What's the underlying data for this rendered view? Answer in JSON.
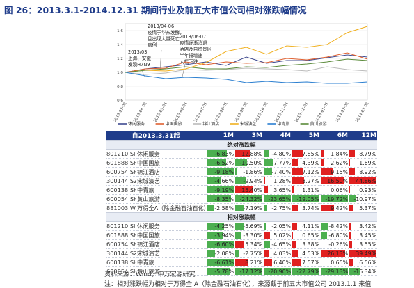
{
  "figure": {
    "title": "图 26：2013.3.1-2014.12.31 期间行业及前五大市值公司相对涨跌幅情况",
    "source": "资料来源：Wind，申万宏源研究",
    "note": "注：相对涨跌幅为相对于万得全 A（除金融石油石化），来源截于前五大市值公司 2013.1.1 来值"
  },
  "chart_data": [
    {
      "type": "line",
      "title": "",
      "x": [
        "2013-03-01",
        "2013-04-01",
        "2013-05-01",
        "2013-06-01",
        "2013-07-01",
        "2013-08-01",
        "2013-09-01",
        "2013-10-01",
        "2013-11-01",
        "2013-12-01",
        "2014-01-01",
        "2014-02-01",
        "2014-03-01"
      ],
      "ylim": [
        0.6,
        1.7
      ],
      "yticks": [
        0.6,
        0.8,
        1.0,
        1.2,
        1.4,
        1.6
      ],
      "grid": true,
      "legend": "bottom",
      "series": [
        {
          "name": "休闲服务",
          "color": "#3f4a8f",
          "values": [
            1.0,
            1.05,
            1.08,
            1.11,
            1.15,
            1.1,
            1.22,
            1.13,
            1.17,
            1.17,
            1.21,
            1.25,
            1.22
          ]
        },
        {
          "name": "中国国旅",
          "color": "#e06030",
          "values": [
            1.0,
            1.05,
            1.06,
            1.15,
            1.11,
            1.15,
            1.13,
            1.14,
            1.2,
            1.18,
            1.22,
            1.28,
            1.19
          ]
        },
        {
          "name": "锦江酒店",
          "color": "#bbbbbb",
          "values": [
            1.0,
            0.97,
            0.99,
            1.04,
            1.03,
            1.04,
            1.06,
            1.05,
            1.04,
            1.02,
            1.08,
            1.04,
            1.02
          ]
        },
        {
          "name": "宋城演艺",
          "color": "#f0b020",
          "values": [
            1.0,
            1.03,
            1.02,
            1.05,
            1.14,
            1.3,
            1.36,
            1.26,
            1.38,
            1.36,
            1.4,
            1.57,
            1.66
          ]
        },
        {
          "name": "中青旅",
          "color": "#2b7fd0",
          "values": [
            1.0,
            0.95,
            0.91,
            0.93,
            0.92,
            0.9,
            0.85,
            0.87,
            0.85,
            0.86,
            0.84,
            0.84,
            0.86
          ]
        },
        {
          "name": "黄山旅游",
          "color": "#5a8a3a",
          "values": [
            1.0,
            1.03,
            1.05,
            1.08,
            1.05,
            1.05,
            1.08,
            1.07,
            1.1,
            1.12,
            1.15,
            1.19,
            1.17
          ]
        }
      ],
      "annotations": [
        {
          "lines": [
            "2013/03",
            "上海、安徽",
            "发现H7N9"
          ]
        },
        {
          "lines": [
            "2013/04-06",
            "疫情于华东发酵，",
            "且出现大量死亡",
            "病例"
          ]
        },
        {
          "lines": [
            "2013/06-07",
            "疫情逐渐消退",
            "酒店及自然景区",
            "半年报增速",
            "大幅下跌"
          ]
        }
      ]
    },
    {
      "type": "table",
      "columns": [
        "自2013.3.31起",
        "1M",
        "3M",
        "4M",
        "5M",
        "6M",
        "12M"
      ],
      "sections": [
        {
          "title": "绝对涨跌幅",
          "rows": [
            {
              "code": "801210.SI",
              "name": "休闲服务",
              "values": [
                "-6.83%",
                "12.88%",
                "-4.80%",
                "7.85%",
                "1.84%",
                "8.79%"
              ],
              "nums": [
                -6.83,
                12.88,
                -4.8,
                7.85,
                1.84,
                8.79
              ]
            },
            {
              "code": "601888.SH",
              "name": "中国国旅",
              "values": [
                "-6.52%",
                "-10.50%",
                "-7.77%",
                "4.39%",
                "2.62%",
                "1.69%"
              ],
              "nums": [
                -6.52,
                -10.5,
                -7.77,
                4.39,
                2.62,
                1.69
              ]
            },
            {
              "code": "600754.SH",
              "name": "锦江酒店",
              "values": [
                "-9.18%",
                "-1.86%",
                "-7.40%",
                "7.12%",
                "9.15%",
                "8.92%"
              ],
              "nums": [
                -9.18,
                -1.86,
                -7.4,
                7.12,
                9.15,
                8.92
              ]
            },
            {
              "code": "300144.SZ",
              "name": "宋城演艺",
              "values": [
                "-4.66%",
                "-9.94%",
                "1.28%",
                "8.27%",
                "16.50%",
                "44.86%"
              ],
              "nums": [
                -4.66,
                -9.94,
                1.28,
                8.27,
                16.5,
                44.86
              ]
            },
            {
              "code": "600138.SH",
              "name": "中青旅",
              "values": [
                "-9.19%",
                "15.40%",
                "3.65%",
                "1.31%",
                "0.06%",
                "0.93%"
              ],
              "nums": [
                -9.19,
                15.4,
                3.65,
                1.31,
                0.06,
                0.93
              ]
            },
            {
              "code": "600054.SH",
              "name": "黄山旅游",
              "values": [
                "-8.35%",
                "-24.32%",
                "-23.65%",
                "-19.05%",
                "-19.72%",
                "-10.97%"
              ],
              "nums": [
                -8.35,
                -24.32,
                -23.65,
                -19.05,
                -19.72,
                -10.97
              ]
            },
            {
              "code": "881003.WI",
              "name": "万得全A（除金融石油石化）",
              "values": [
                "-2.58%",
                "-7.19%",
                "-2.75%",
                "3.74%",
                "9.42%",
                "5.37%"
              ],
              "nums": [
                -2.58,
                -7.19,
                -2.75,
                3.74,
                9.42,
                5.37
              ]
            }
          ]
        },
        {
          "title": "相对涨跌幅",
          "rows": [
            {
              "code": "801210.SI",
              "name": "休闲服务",
              "values": [
                "-4.25%",
                "-5.69%",
                "-2.05%",
                "4.11%",
                "-8.42%",
                "3.42%"
              ],
              "nums": [
                -4.25,
                -5.69,
                -2.05,
                4.11,
                -8.42,
                3.42
              ]
            },
            {
              "code": "601888.SH",
              "name": "中国国旅",
              "values": [
                "-3.94%",
                "-3.30%",
                "5.02%",
                "0.65%",
                "-6.80%",
                "3.45%"
              ],
              "nums": [
                -3.94,
                -3.3,
                5.02,
                0.65,
                -6.8,
                3.45
              ]
            },
            {
              "code": "600754.SH",
              "name": "锦江酒店",
              "values": [
                "-6.60%",
                "5.34%",
                "-4.65%",
                "3.38%",
                "-0.26%",
                "3.55%"
              ],
              "nums": [
                -6.6,
                5.34,
                -4.65,
                3.38,
                -0.26,
                3.55
              ]
            },
            {
              "code": "300144.SZ",
              "name": "宋城演艺",
              "values": [
                "-2.08%",
                "-2.75%",
                "4.03%",
                "4.53%",
                "26.13%",
                "39.49%"
              ],
              "nums": [
                -2.08,
                -2.75,
                4.03,
                4.53,
                26.13,
                39.49
              ]
            },
            {
              "code": "600138.SH",
              "name": "中青旅",
              "values": [
                "-6.61%",
                "8.21%",
                "6.40%",
                "7.57%",
                "0.65%",
                "6.56%"
              ],
              "nums": [
                -6.61,
                8.21,
                6.4,
                7.57,
                0.65,
                6.56
              ]
            },
            {
              "code": "600054.SH",
              "name": "黄山旅游",
              "values": [
                "-5.78%",
                "-17.12%",
                "-20.90%",
                "-22.79%",
                "-29.13%",
                "-16.34%"
              ],
              "nums": [
                -5.78,
                -17.12,
                -20.9,
                -22.79,
                -29.13,
                -16.34
              ]
            }
          ]
        }
      ]
    }
  ]
}
